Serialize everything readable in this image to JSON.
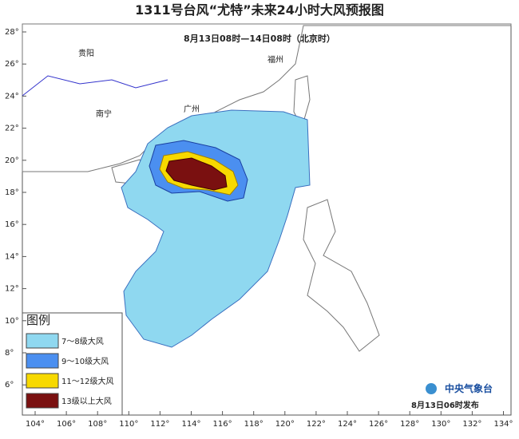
{
  "header": {
    "title": "1311号台风“尤特”未来24小时大风预报图",
    "subtitle": "8月13日08时—14日08时（北京时）"
  },
  "map": {
    "lon_ticks": [
      {
        "value": 104,
        "label": "104°"
      },
      {
        "value": 106,
        "label": "106°"
      },
      {
        "value": 108,
        "label": "108°"
      },
      {
        "value": 110,
        "label": "110°"
      },
      {
        "value": 112,
        "label": "112°"
      },
      {
        "value": 114,
        "label": "114°"
      },
      {
        "value": 116,
        "label": "116°"
      },
      {
        "value": 118,
        "label": "118°"
      },
      {
        "value": 120,
        "label": "120°"
      },
      {
        "value": 122,
        "label": "122°"
      },
      {
        "value": 124,
        "label": "124°"
      },
      {
        "value": 126,
        "label": "126°"
      },
      {
        "value": 128,
        "label": "128°"
      },
      {
        "value": 130,
        "label": "130°"
      },
      {
        "value": 132,
        "label": "132°"
      },
      {
        "value": 134,
        "label": "134°"
      }
    ],
    "lat_ticks": [
      {
        "value": 28,
        "label": "28°"
      },
      {
        "value": 26,
        "label": "26°"
      },
      {
        "value": 24,
        "label": "24°"
      },
      {
        "value": 22,
        "label": "22°"
      },
      {
        "value": 20,
        "label": "20°"
      },
      {
        "value": 18,
        "label": "18°"
      },
      {
        "value": 16,
        "label": "16°"
      },
      {
        "value": 14,
        "label": "14°"
      },
      {
        "value": 12,
        "label": "12°"
      },
      {
        "value": 10,
        "label": "10°"
      },
      {
        "value": 8,
        "label": "8°"
      },
      {
        "value": 6,
        "label": "6°"
      }
    ],
    "cities": [
      "贵阳",
      "南宁",
      "广州",
      "福州"
    ]
  },
  "legend": {
    "title": "图例",
    "entries": [
      {
        "label": "7～8级大风",
        "color": "#8fd8f0"
      },
      {
        "label": "9～10级大风",
        "color": "#4b8ff0"
      },
      {
        "label": "11～12级大风",
        "color": "#f7d900"
      },
      {
        "label": "13级以上大风",
        "color": "#7a1010"
      }
    ]
  },
  "footer": {
    "agency": "中央气象台",
    "issued": "8月13日06时发布"
  }
}
